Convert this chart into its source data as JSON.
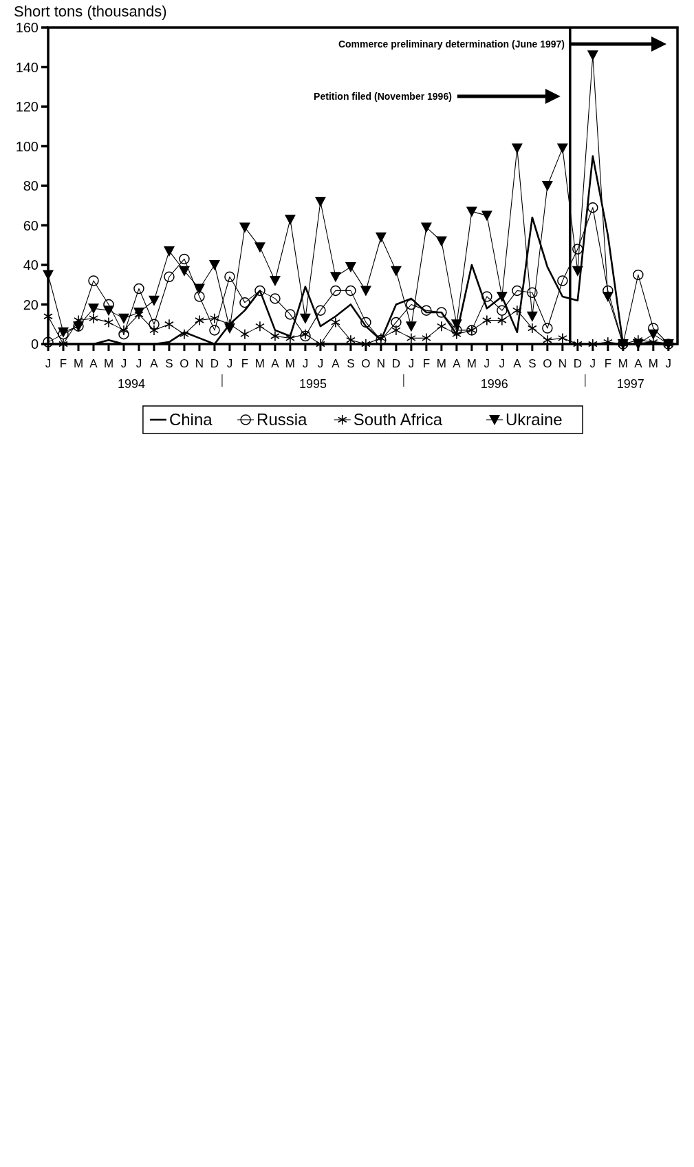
{
  "chart_data": {
    "type": "line",
    "ylabel": "Short tons (thousands)",
    "categories": [
      "J",
      "F",
      "M",
      "A",
      "M",
      "J",
      "J",
      "A",
      "S",
      "O",
      "N",
      "D",
      "J",
      "F",
      "M",
      "A",
      "M",
      "J",
      "J",
      "A",
      "S",
      "O",
      "N",
      "D",
      "J",
      "F",
      "M",
      "A",
      "M",
      "J",
      "J",
      "A",
      "S",
      "O",
      "N",
      "D",
      "J",
      "F",
      "M",
      "A",
      "M",
      "J"
    ],
    "series": [
      {
        "name": "China",
        "color": "#000000",
        "marker": "none",
        "values": [
          0,
          0,
          0,
          0,
          2,
          0,
          0,
          0,
          1,
          6,
          3,
          0,
          10,
          17,
          27,
          7,
          4,
          29,
          9,
          14,
          20,
          9,
          2,
          20,
          23,
          16,
          16,
          5,
          40,
          18,
          24,
          6,
          64,
          39,
          24,
          22,
          95,
          55,
          0,
          0,
          1,
          0
        ]
      },
      {
        "name": "Russia",
        "color": "#000000",
        "marker": "circle",
        "values": [
          1,
          5,
          9,
          32,
          20,
          5,
          28,
          10,
          34,
          43,
          24,
          7,
          34,
          21,
          27,
          23,
          15,
          4,
          17,
          27,
          27,
          11,
          2,
          11,
          20,
          17,
          16,
          7,
          7,
          24,
          17,
          27,
          26,
          8,
          32,
          48,
          69,
          27,
          0,
          35,
          8,
          0
        ]
      },
      {
        "name": "South Africa",
        "color": "#000000",
        "marker": "cross",
        "values": [
          14,
          0,
          12,
          13,
          11,
          7,
          15,
          7,
          10,
          5,
          12,
          13,
          10,
          5,
          9,
          4,
          3,
          5,
          0,
          11,
          2,
          0,
          3,
          7,
          3,
          3,
          9,
          5,
          7,
          12,
          12,
          17,
          8,
          2,
          3,
          0,
          0,
          1,
          0,
          2,
          1,
          0
        ]
      },
      {
        "name": "Ukraine",
        "color": "#000000",
        "marker": "triangle",
        "values": [
          35,
          6,
          9,
          18,
          17,
          13,
          16,
          22,
          47,
          37,
          28,
          40,
          8,
          59,
          49,
          32,
          63,
          13,
          72,
          34,
          39,
          27,
          54,
          37,
          9,
          59,
          52,
          10,
          67,
          65,
          24,
          99,
          14,
          80,
          99,
          37,
          146,
          24,
          0,
          0,
          5,
          0
        ]
      }
    ],
    "ylim": [
      0,
      160
    ],
    "yticks": [
      0,
      20,
      40,
      60,
      80,
      100,
      120,
      140,
      160
    ],
    "annotations": [
      "Commerce preliminary determination (June 1997)",
      "Petition filed (November 1996)",
      "1994",
      "1995",
      "1996",
      "1997"
    ],
    "grid": false,
    "legend": "bottom"
  }
}
